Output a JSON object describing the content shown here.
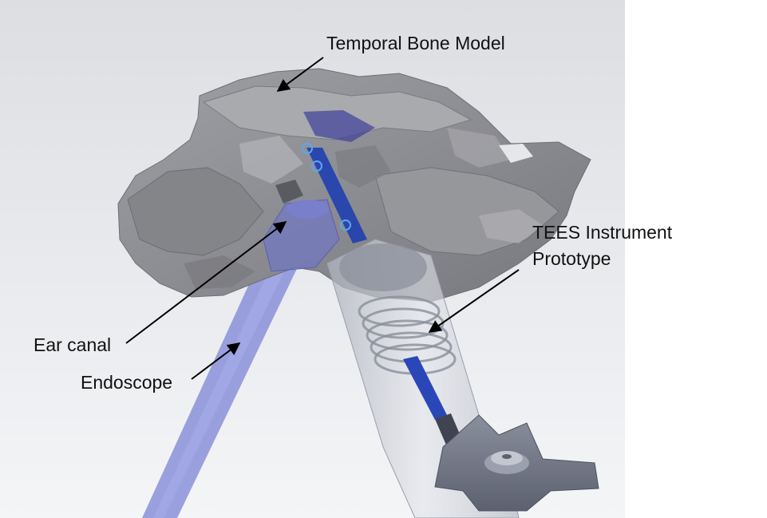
{
  "figure": {
    "labels": {
      "temporal_bone": "Temporal Bone Model",
      "tees_line1": "TEES Instrument",
      "tees_line2": "Prototype",
      "ear_canal": "Ear canal",
      "endoscope": "Endoscope"
    },
    "colors": {
      "background_gradient_top": "#dcdee2",
      "background_gradient_bottom": "#f4f5f7",
      "bone": "#8f9095",
      "bone_dark": "#6e6f74",
      "bone_light": "#b4b5b9",
      "endoscope": "#8a90d8",
      "instrument_shaft": "#1f3fb0",
      "instrument_housing": "#c9ccd6",
      "thumb_wheel": "#6f7484",
      "annotation": "#000000"
    }
  }
}
